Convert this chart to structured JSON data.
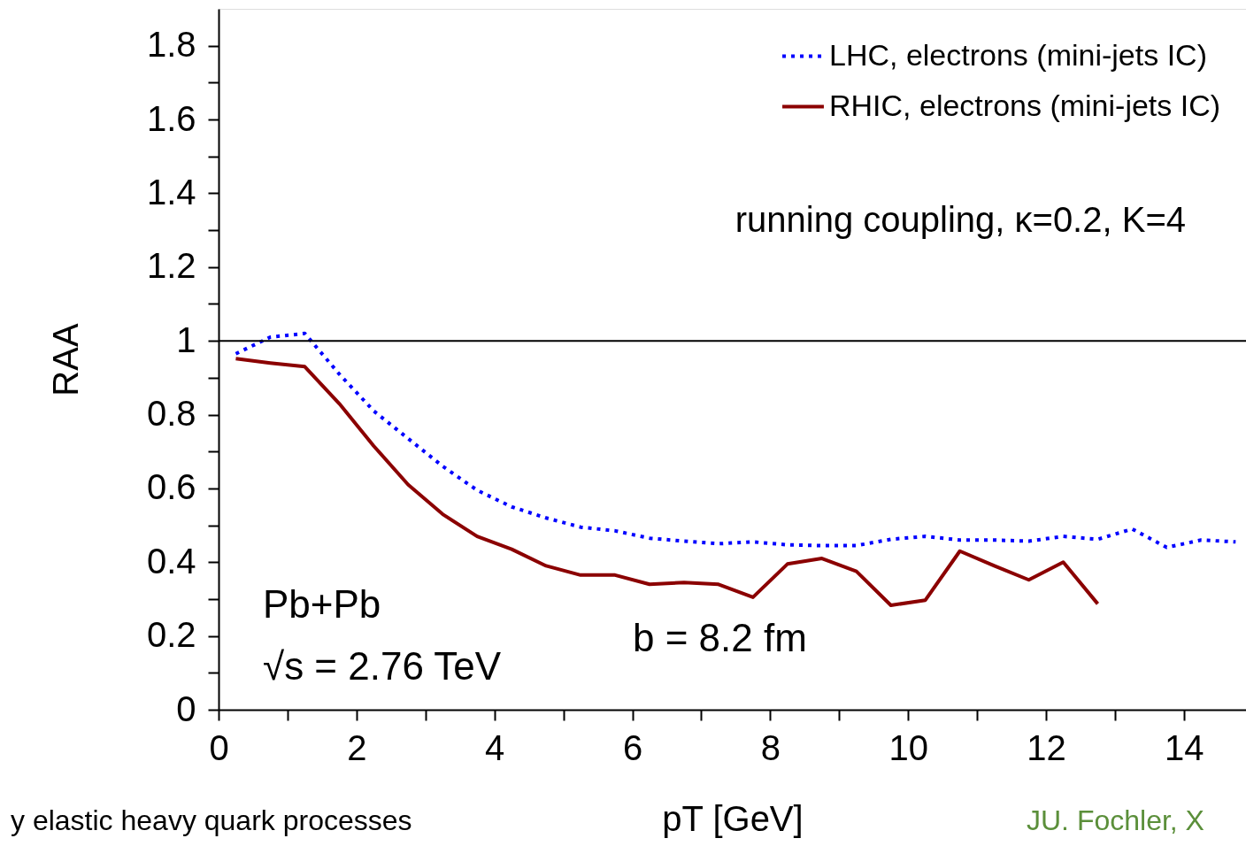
{
  "chart_data": {
    "type": "line",
    "xlabel": "pT [GeV]",
    "ylabel": "RAA",
    "x": [
      0.25,
      0.75,
      1.25,
      1.75,
      2.25,
      2.75,
      3.25,
      3.75,
      4.25,
      4.75,
      5.25,
      5.75,
      6.25,
      6.75,
      7.25,
      7.75,
      8.25,
      8.75,
      9.25,
      9.75,
      10.25,
      10.75,
      11.25,
      11.75,
      12.25,
      12.75,
      13.25,
      13.75,
      14.25,
      14.75
    ],
    "series": [
      {
        "name": "LHC, electrons (mini-jets IC)",
        "color": "#0000ff",
        "line_style": "dotted",
        "values": [
          0.965,
          1.01,
          1.02,
          0.91,
          0.81,
          0.735,
          0.66,
          0.595,
          0.55,
          0.52,
          0.495,
          0.485,
          0.465,
          0.457,
          0.45,
          0.455,
          0.447,
          0.445,
          0.445,
          0.462,
          0.47,
          0.46,
          0.46,
          0.457,
          0.47,
          0.462,
          0.49,
          0.44,
          0.46,
          0.455
        ]
      },
      {
        "name": "RHIC, electrons (mini-jets IC)",
        "color": "#8b0000",
        "line_style": "solid",
        "values": [
          0.952,
          0.94,
          0.93,
          0.83,
          0.715,
          0.61,
          0.53,
          0.47,
          0.435,
          0.39,
          0.365,
          0.365,
          0.34,
          0.345,
          0.34,
          0.305,
          0.395,
          0.41,
          0.375,
          0.283,
          0.297,
          0.43,
          0.39,
          0.352,
          0.4,
          0.287,
          null,
          null,
          null,
          null
        ]
      }
    ],
    "xlim": [
      0,
      14.9
    ],
    "ylim": [
      0,
      1.9
    ],
    "xticks": [
      0,
      {
        "value": 1,
        "label": null
      },
      2,
      {
        "value": 3,
        "label": null
      },
      4,
      {
        "value": 5,
        "label": null
      },
      6,
      {
        "value": 7,
        "label": null
      },
      8,
      {
        "value": 9,
        "label": null
      },
      10,
      {
        "value": 11,
        "label": null
      },
      12,
      {
        "value": 13,
        "label": null
      },
      14
    ],
    "yticks": [
      0,
      {
        "value": 0.1,
        "label": null
      },
      0.2,
      {
        "value": 0.3,
        "label": null
      },
      0.4,
      {
        "value": 0.5,
        "label": null
      },
      0.6,
      {
        "value": 0.7,
        "label": null
      },
      0.8,
      {
        "value": 0.9,
        "label": null
      },
      1,
      {
        "value": 1.1,
        "label": null
      },
      1.2,
      {
        "value": 1.3,
        "label": null
      },
      1.4,
      {
        "value": 1.5,
        "label": null
      },
      1.6,
      {
        "value": 1.7,
        "label": null
      },
      1.8
    ],
    "ref_lines": [
      {
        "axis": "y",
        "value": 1,
        "color": "#000000"
      }
    ],
    "annotations": [
      "running coupling, κ=0.2, K=4",
      "Pb+Pb",
      "√s = 2.76 TeV",
      "b = 8.2 fm",
      "y elastic heavy quark processes",
      "JU. Fochler, X"
    ],
    "legend": "top right",
    "grid": false,
    "marker": "none"
  }
}
